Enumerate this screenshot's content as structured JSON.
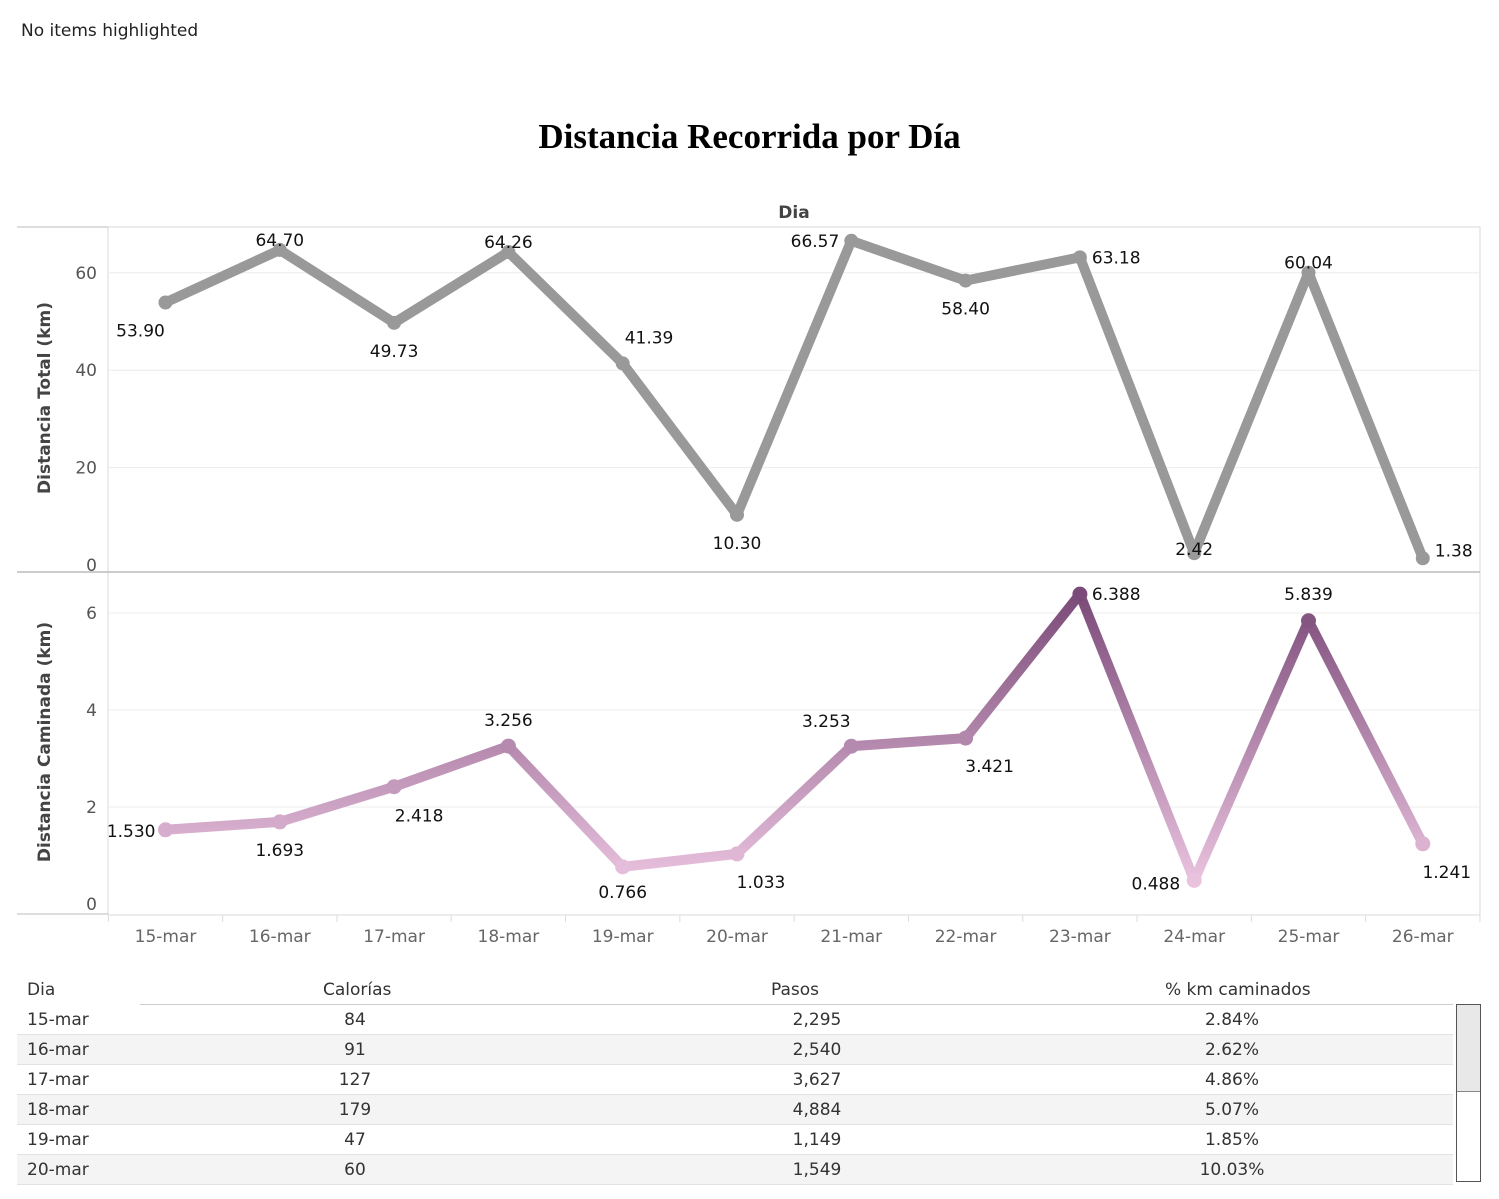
{
  "status_text": "No items highlighted",
  "chart_data": [
    {
      "type": "line",
      "title": "Distancia Recorrida por Día",
      "xlabel": "Dia",
      "ylabel": "Distancia Total (km)",
      "categories": [
        "15-mar",
        "16-mar",
        "17-mar",
        "18-mar",
        "19-mar",
        "20-mar",
        "21-mar",
        "22-mar",
        "23-mar",
        "24-mar",
        "25-mar",
        "26-mar"
      ],
      "values": [
        53.9,
        64.7,
        49.73,
        64.26,
        41.39,
        10.3,
        66.57,
        58.4,
        63.18,
        2.42,
        60.04,
        1.38
      ],
      "labels": [
        "53.90",
        "64.70",
        "49.73",
        "64.26",
        "41.39",
        "10.30",
        "66.57",
        "58.40",
        "63.18",
        "2.42",
        "60.04",
        "1.38"
      ],
      "yticks": [
        "0",
        "20",
        "40",
        "60"
      ],
      "ylim": [
        0,
        70
      ],
      "color": "#999999",
      "grid": true
    },
    {
      "type": "line",
      "ylabel": "Distancia Caminada (km)",
      "categories": [
        "15-mar",
        "16-mar",
        "17-mar",
        "18-mar",
        "19-mar",
        "20-mar",
        "21-mar",
        "22-mar",
        "23-mar",
        "24-mar",
        "25-mar",
        "26-mar"
      ],
      "values": [
        1.53,
        1.693,
        2.418,
        3.256,
        0.766,
        1.033,
        3.253,
        3.421,
        6.388,
        0.488,
        5.839,
        1.241
      ],
      "labels": [
        "1.530",
        "1.693",
        "2.418",
        "3.256",
        "0.766",
        "1.033",
        "3.253",
        "3.421",
        "6.388",
        "0.488",
        "5.839",
        "1.241"
      ],
      "yticks": [
        "0",
        "2",
        "4",
        "6"
      ],
      "ylim": [
        0,
        6.8
      ],
      "color_low": "#ebc4e0",
      "color_high": "#7a4a78",
      "grid": true
    }
  ],
  "table": {
    "headers": [
      "Dia",
      "Calorías",
      "Pasos",
      "% km caminados"
    ],
    "rows": [
      [
        "15-mar",
        "84",
        "2,295",
        "2.84%"
      ],
      [
        "16-mar",
        "91",
        "2,540",
        "2.62%"
      ],
      [
        "17-mar",
        "127",
        "3,627",
        "4.86%"
      ],
      [
        "18-mar",
        "179",
        "4,884",
        "5.07%"
      ],
      [
        "19-mar",
        "47",
        "1,149",
        "1.85%"
      ],
      [
        "20-mar",
        "60",
        "1,549",
        "10.03%"
      ]
    ]
  }
}
